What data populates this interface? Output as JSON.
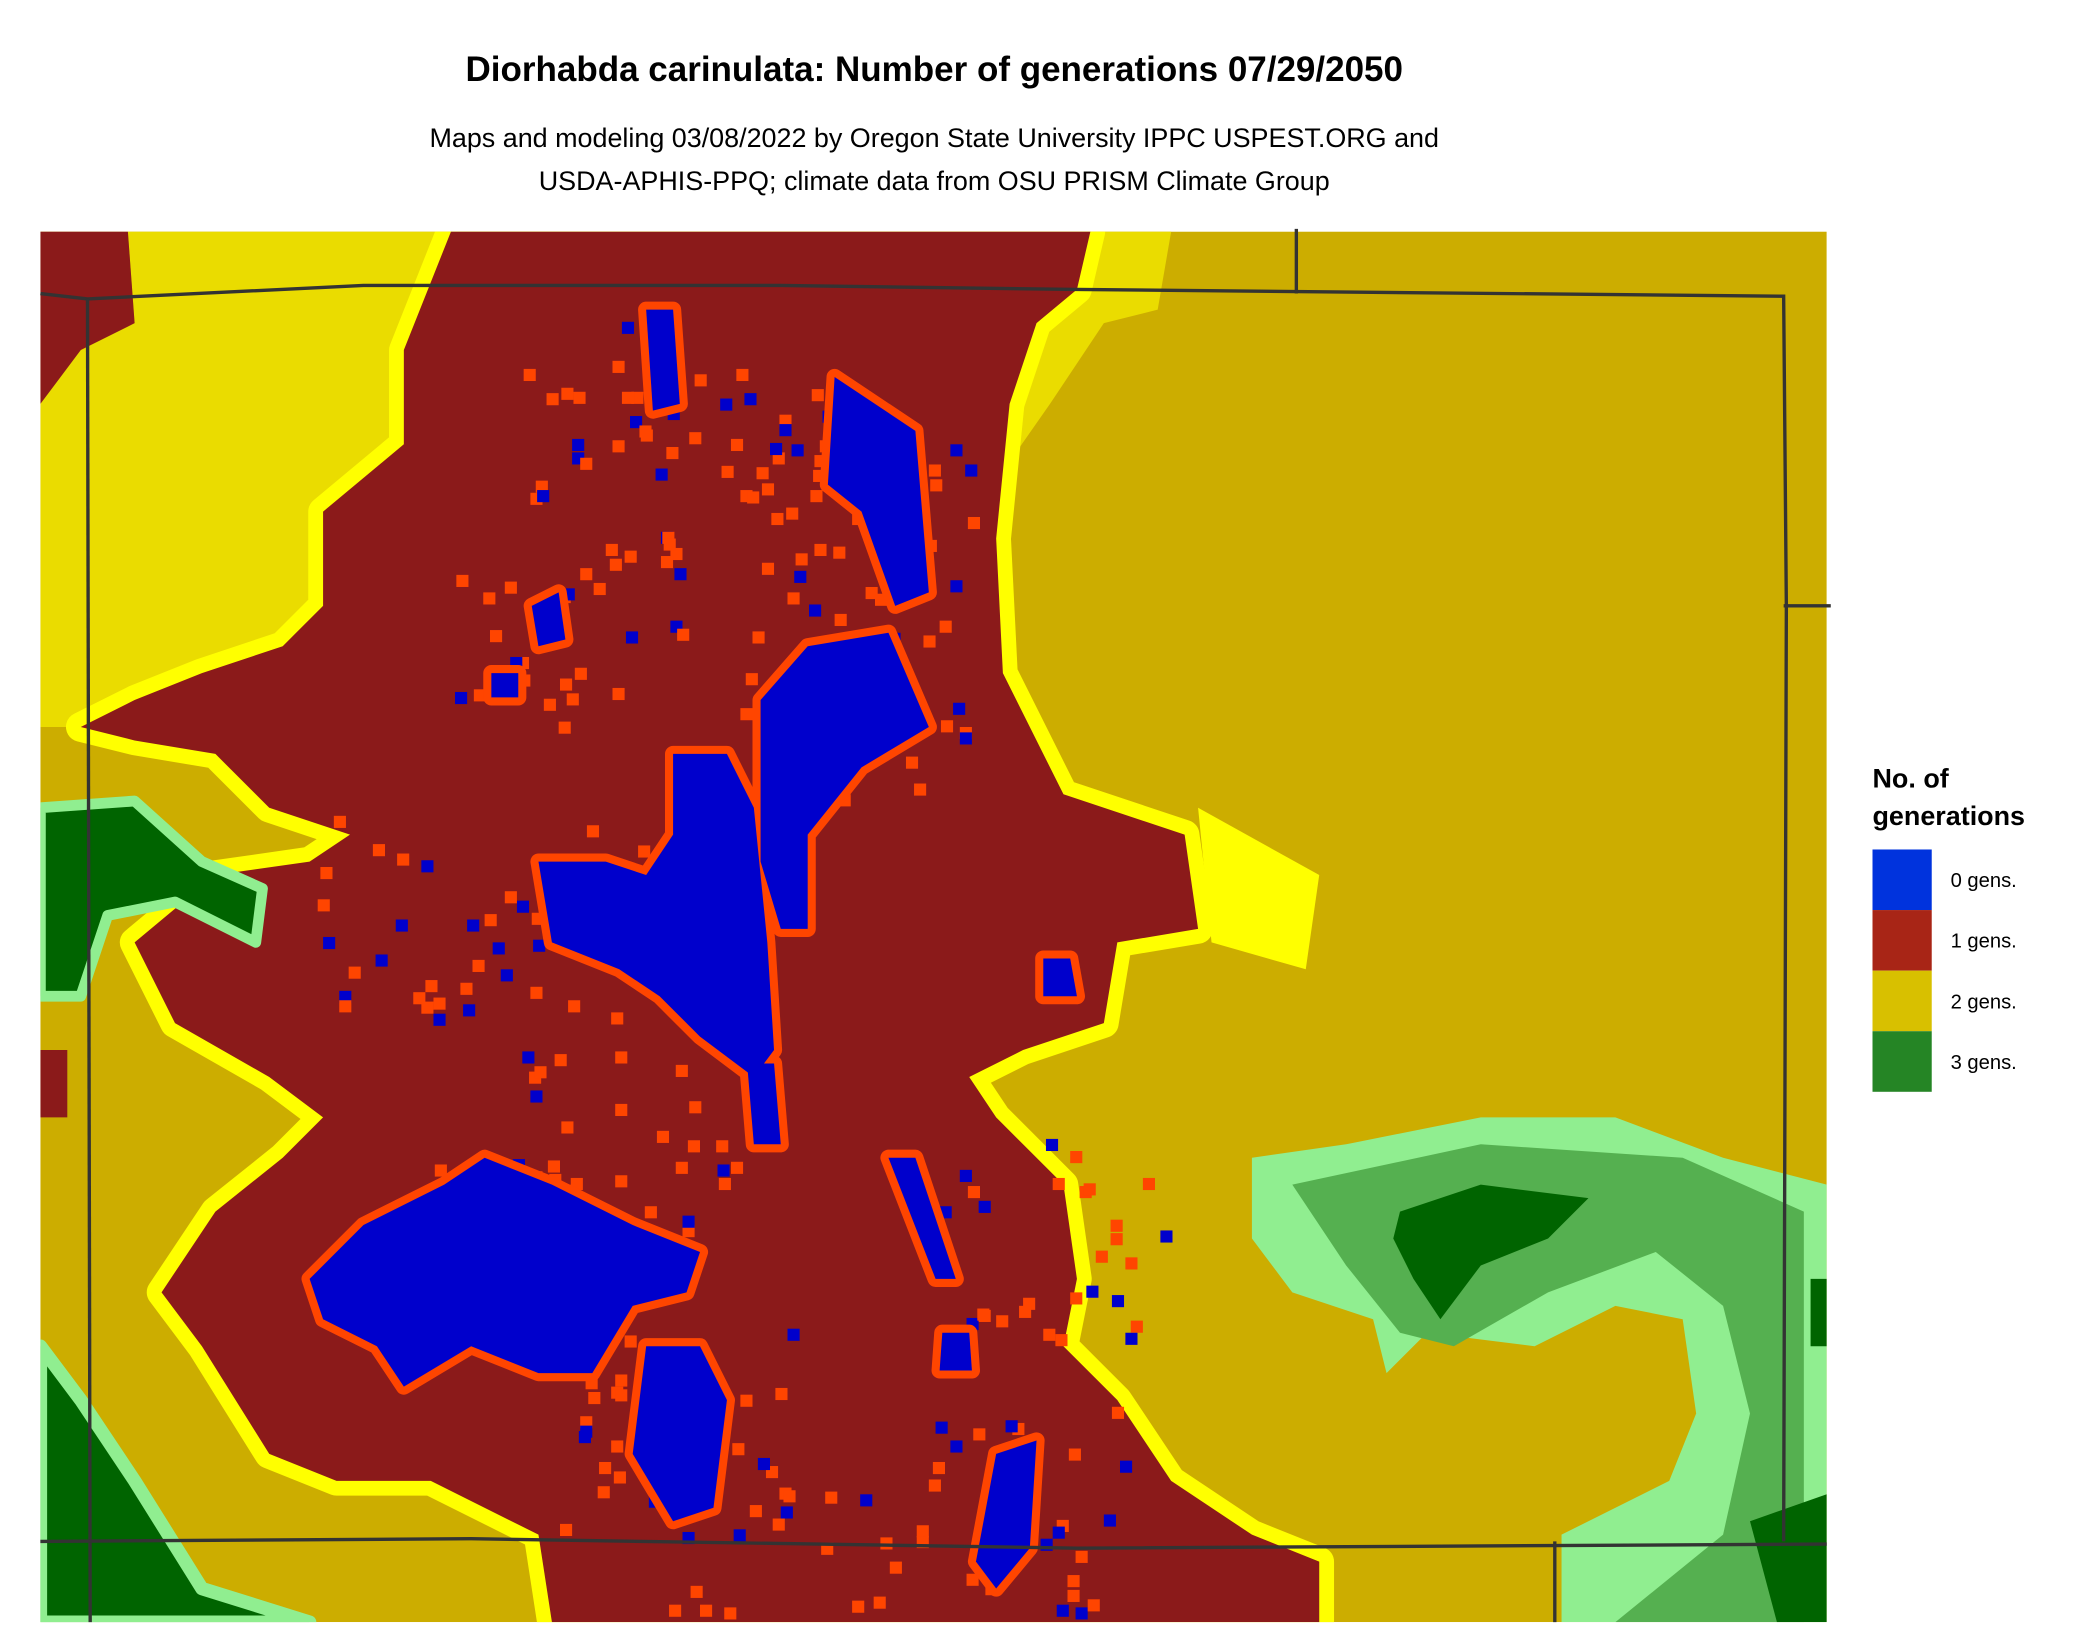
{
  "title": "Diorhabda carinulata: Number of generations 07/29/2050",
  "subtitle_line1": "Maps and modeling 03/08/2022 by Oregon State University IPPC USPEST.ORG and",
  "subtitle_line2": "USDA-APHIS-PPQ; climate data from OSU PRISM Climate Group",
  "chart_data": {
    "type": "heatmap",
    "title": "Diorhabda carinulata: Number of generations 07/29/2050",
    "legend": {
      "title_line1": "No. of",
      "title_line2": "generations",
      "placement": "right",
      "items": [
        {
          "label": "0 gens.",
          "value": 0,
          "color": "#0033dd"
        },
        {
          "label": "1 gens.",
          "value": 1,
          "color": "#a82516"
        },
        {
          "label": "2 gens.",
          "value": 2,
          "color": "#d8c000"
        },
        {
          "label": "3 gens.",
          "value": 3,
          "color": "#258525"
        }
      ]
    }
  },
  "map_colors": {
    "zero": "#0000cc",
    "zero_edge": "#ff4500",
    "one": "#8b1a1a",
    "one_edge": "#ffff00",
    "two": "#ccad00",
    "two_light": "#eadc00",
    "three_dark": "#006400",
    "three_mid": "#55b050",
    "three_light": "#90ee90",
    "border": "#333333"
  }
}
